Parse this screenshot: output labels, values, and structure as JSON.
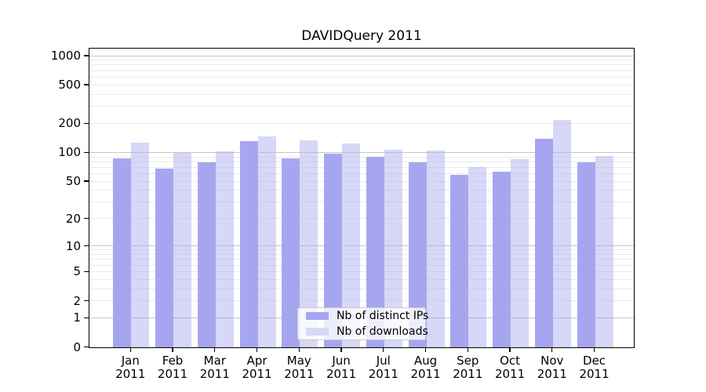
{
  "chart_data": {
    "type": "bar",
    "title": "DAVIDQuery 2011",
    "categories": [
      "Jan",
      "Feb",
      "Mar",
      "Apr",
      "May",
      "Jun",
      "Jul",
      "Aug",
      "Sep",
      "Oct",
      "Nov",
      "Dec"
    ],
    "category_year": "2011",
    "series": [
      {
        "key": "distinct-ips",
        "name": "Nb of distinct IPs",
        "color": "#a6a6f0",
        "values": [
          88,
          68,
          79,
          131,
          88,
          97,
          91,
          80,
          59,
          63,
          139,
          79
        ]
      },
      {
        "key": "downloads",
        "name": "Nb of downloads",
        "color": "#d8d8f7",
        "color_rgba": "rgba(166,166,240,0.45)",
        "values": [
          126,
          100,
          103,
          148,
          134,
          124,
          108,
          105,
          71,
          86,
          218,
          92
        ]
      }
    ],
    "xlabel": "",
    "ylabel": "",
    "yscale": "log1p",
    "ylim": [
      0,
      1200
    ],
    "yticks": [
      0,
      1,
      2,
      5,
      10,
      20,
      50,
      100,
      200,
      500,
      1000
    ],
    "grid": {
      "major_values": [
        1,
        10,
        100,
        1000
      ],
      "minor_subs": [
        2,
        3,
        4,
        5,
        6,
        7,
        8,
        9
      ],
      "minor_decades": [
        1,
        10,
        100
      ],
      "major_color": "#c6c6c6",
      "minor_color": "#ebebeb"
    },
    "legend_position": "bottom-center"
  },
  "colors": {
    "spine": "#000000",
    "text": "#000000",
    "background": "#ffffff"
  }
}
